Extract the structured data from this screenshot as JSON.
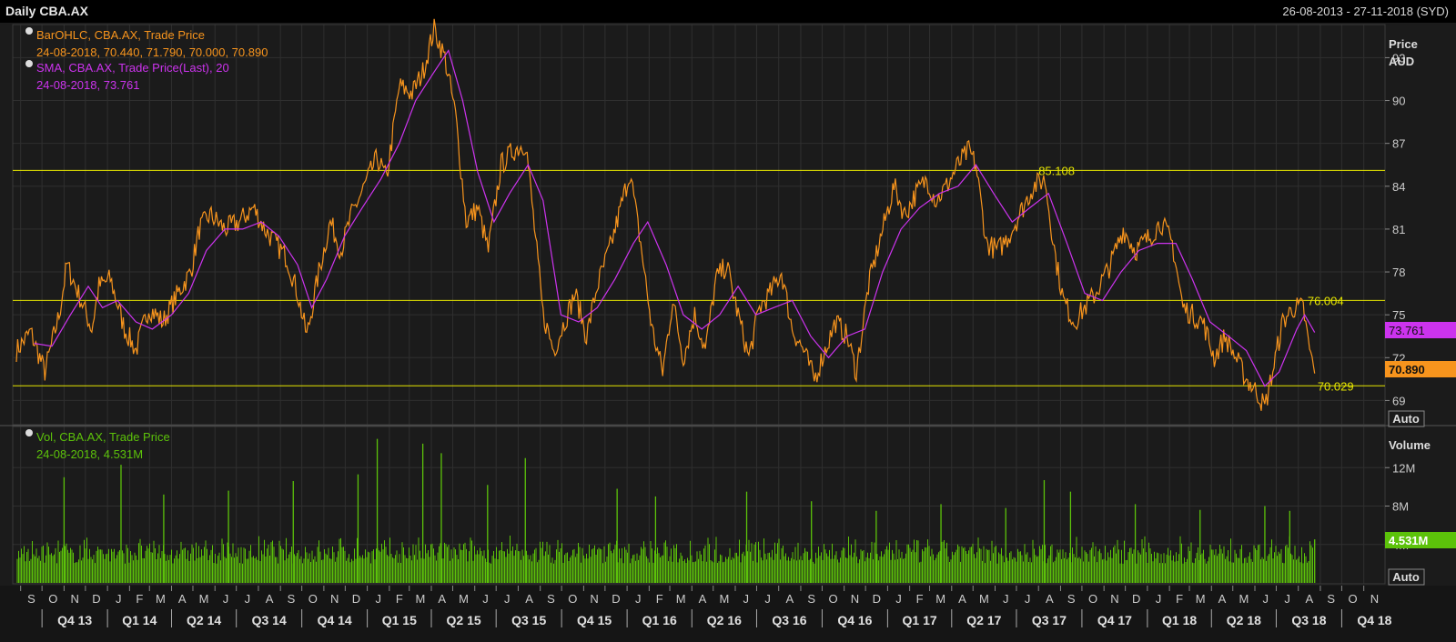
{
  "window": {
    "title": "Daily CBA.AX",
    "date_range": "26-08-2013 - 27-11-2018 (SYD)"
  },
  "legend": {
    "ohlc_title": "BarOHLC, CBA.AX, Trade Price",
    "ohlc_values": "24-08-2018, 70.440, 71.790, 70.000, 70.890",
    "sma_title": "SMA, CBA.AX, Trade Price(Last),  20",
    "sma_values": "24-08-2018, 73.761",
    "vol_title": "Vol, CBA.AX, Trade Price",
    "vol_values": "24-08-2018, 4.531M"
  },
  "price_axis": {
    "title": "Price",
    "unit": "AUD",
    "auto_label": "Auto"
  },
  "volume_axis": {
    "title": "Volume",
    "auto_label": "Auto"
  },
  "tags": {
    "sma_last": "73.761",
    "price_last": "70.890",
    "vol_last": "4.531M"
  },
  "colors": {
    "price": "#f7941d",
    "sma": "#cc33ee",
    "volume": "#5cc20a",
    "level": "#e6e600",
    "grid": "#2f2f2f",
    "text": "#cccccc"
  },
  "chart_data": [
    {
      "type": "line",
      "title": "",
      "ylabel": "Price AUD",
      "ylim": [
        67.5,
        95
      ],
      "y_ticks": [
        69,
        72,
        75,
        78,
        81,
        84,
        87,
        90,
        93
      ],
      "x_range": [
        "2013-08-26",
        "2018-11-27"
      ],
      "month_labels": [
        "S",
        "O",
        "N",
        "D",
        "J",
        "F",
        "M",
        "A",
        "M",
        "J",
        "J",
        "A",
        "S",
        "O",
        "N",
        "D",
        "J",
        "F",
        "M",
        "A",
        "M",
        "J",
        "J",
        "A",
        "S",
        "O",
        "N",
        "D",
        "J",
        "F",
        "M",
        "A",
        "M",
        "J",
        "J",
        "A",
        "S",
        "O",
        "N",
        "D",
        "J",
        "F",
        "M",
        "A",
        "M",
        "J",
        "J",
        "A",
        "S",
        "O",
        "N",
        "D",
        "J",
        "F",
        "M",
        "A",
        "M",
        "J",
        "J",
        "A",
        "S",
        "O",
        "N"
      ],
      "quarter_labels": [
        "Q4 13",
        "Q1 14",
        "Q2 14",
        "Q3 14",
        "Q4 14",
        "Q1 15",
        "Q2 15",
        "Q3 15",
        "Q4 15",
        "Q1 16",
        "Q2 16",
        "Q3 16",
        "Q4 16",
        "Q1 17",
        "Q2 17",
        "Q3 17",
        "Q4 17",
        "Q1 18",
        "Q2 18",
        "Q3 18",
        "Q4 18"
      ],
      "horizontal_levels": [
        {
          "value": 85.108,
          "label": "85.108",
          "label_date": "2017-08-01"
        },
        {
          "value": 76.004,
          "label": "76.004",
          "label_date": "2018-08-14"
        },
        {
          "value": 70.029,
          "label": "70.029",
          "label_date": "2018-08-28"
        }
      ],
      "series": [
        {
          "name": "BarOHLC, CBA.AX, Trade Price",
          "points": [
            [
              "2013-08-26",
              72.5
            ],
            [
              "2013-09-15",
              73.8
            ],
            [
              "2013-10-05",
              71.0
            ],
            [
              "2013-10-25",
              75.0
            ],
            [
              "2013-11-05",
              78.5
            ],
            [
              "2013-11-25",
              76.0
            ],
            [
              "2013-12-10",
              74.0
            ],
            [
              "2013-12-20",
              77.0
            ],
            [
              "2014-01-05",
              77.5
            ],
            [
              "2014-01-25",
              74.0
            ],
            [
              "2014-02-10",
              72.5
            ],
            [
              "2014-02-28",
              75.5
            ],
            [
              "2014-03-20",
              74.5
            ],
            [
              "2014-04-10",
              76.5
            ],
            [
              "2014-04-28",
              78.0
            ],
            [
              "2014-05-10",
              81.0
            ],
            [
              "2014-05-25",
              82.0
            ],
            [
              "2014-06-15",
              81.0
            ],
            [
              "2014-07-05",
              81.5
            ],
            [
              "2014-07-25",
              82.5
            ],
            [
              "2014-08-10",
              81.0
            ],
            [
              "2014-08-25",
              80.0
            ],
            [
              "2014-09-10",
              79.0
            ],
            [
              "2014-09-25",
              76.5
            ],
            [
              "2014-10-08",
              73.5
            ],
            [
              "2014-10-25",
              78.0
            ],
            [
              "2014-11-10",
              81.5
            ],
            [
              "2014-11-25",
              79.5
            ],
            [
              "2014-12-10",
              82.0
            ],
            [
              "2014-12-28",
              84.0
            ],
            [
              "2015-01-15",
              86.0
            ],
            [
              "2015-01-28",
              84.5
            ],
            [
              "2015-02-15",
              91.0
            ],
            [
              "2015-03-05",
              90.5
            ],
            [
              "2015-03-20",
              92.0
            ],
            [
              "2015-04-05",
              95.0
            ],
            [
              "2015-04-20",
              93.0
            ],
            [
              "2015-05-05",
              89.0
            ],
            [
              "2015-05-20",
              81.5
            ],
            [
              "2015-06-05",
              82.5
            ],
            [
              "2015-06-20",
              79.5
            ],
            [
              "2015-07-08",
              85.5
            ],
            [
              "2015-07-25",
              86.5
            ],
            [
              "2015-08-12",
              87.0
            ],
            [
              "2015-08-22",
              82.0
            ],
            [
              "2015-09-05",
              75.0
            ],
            [
              "2015-09-20",
              72.5
            ],
            [
              "2015-10-05",
              74.5
            ],
            [
              "2015-10-20",
              76.5
            ],
            [
              "2015-11-05",
              73.5
            ],
            [
              "2015-11-20",
              77.0
            ],
            [
              "2015-12-10",
              80.0
            ],
            [
              "2016-01-05",
              85.0
            ],
            [
              "2016-01-20",
              80.0
            ],
            [
              "2016-02-05",
              74.0
            ],
            [
              "2016-02-20",
              71.0
            ],
            [
              "2016-03-05",
              76.0
            ],
            [
              "2016-03-20",
              72.0
            ],
            [
              "2016-04-05",
              75.0
            ],
            [
              "2016-04-20",
              72.5
            ],
            [
              "2016-05-05",
              77.5
            ],
            [
              "2016-05-20",
              78.5
            ],
            [
              "2016-06-05",
              75.0
            ],
            [
              "2016-06-20",
              72.0
            ],
            [
              "2016-07-05",
              75.5
            ],
            [
              "2016-07-20",
              76.5
            ],
            [
              "2016-08-05",
              78.0
            ],
            [
              "2016-08-20",
              74.0
            ],
            [
              "2016-09-05",
              72.5
            ],
            [
              "2016-09-20",
              70.5
            ],
            [
              "2016-10-05",
              72.5
            ],
            [
              "2016-10-20",
              74.5
            ],
            [
              "2016-11-05",
              73.5
            ],
            [
              "2016-11-18",
              71.0
            ],
            [
              "2016-12-05",
              77.0
            ],
            [
              "2016-12-20",
              80.0
            ],
            [
              "2017-01-10",
              84.0
            ],
            [
              "2017-01-25",
              82.0
            ],
            [
              "2017-02-10",
              83.5
            ],
            [
              "2017-02-25",
              84.5
            ],
            [
              "2017-03-10",
              83.0
            ],
            [
              "2017-03-25",
              84.0
            ],
            [
              "2017-04-10",
              85.5
            ],
            [
              "2017-04-25",
              86.5
            ],
            [
              "2017-05-05",
              85.5
            ],
            [
              "2017-05-20",
              80.0
            ],
            [
              "2017-06-05",
              79.5
            ],
            [
              "2017-06-20",
              80.5
            ],
            [
              "2017-07-05",
              82.0
            ],
            [
              "2017-07-25",
              84.0
            ],
            [
              "2017-08-10",
              84.5
            ],
            [
              "2017-08-25",
              79.0
            ],
            [
              "2017-09-05",
              76.0
            ],
            [
              "2017-09-20",
              74.5
            ],
            [
              "2017-10-05",
              75.5
            ],
            [
              "2017-10-20",
              76.5
            ],
            [
              "2017-11-10",
              78.5
            ],
            [
              "2017-11-28",
              81.0
            ],
            [
              "2017-12-15",
              79.5
            ],
            [
              "2018-01-05",
              80.5
            ],
            [
              "2018-01-20",
              81.5
            ],
            [
              "2018-02-05",
              80.0
            ],
            [
              "2018-02-20",
              75.5
            ],
            [
              "2018-03-05",
              75.0
            ],
            [
              "2018-03-20",
              74.5
            ],
            [
              "2018-04-05",
              72.0
            ],
            [
              "2018-04-20",
              73.5
            ],
            [
              "2018-05-05",
              72.0
            ],
            [
              "2018-05-20",
              70.5
            ],
            [
              "2018-06-05",
              69.5
            ],
            [
              "2018-06-15",
              68.5
            ],
            [
              "2018-06-28",
              71.5
            ],
            [
              "2018-07-10",
              74.5
            ],
            [
              "2018-07-25",
              75.5
            ],
            [
              "2018-08-08",
              75.5
            ],
            [
              "2018-08-15",
              73.0
            ],
            [
              "2018-08-24",
              70.89
            ]
          ]
        },
        {
          "name": "SMA, CBA.AX, Trade Price(Last),  20",
          "points": [
            [
              "2013-09-20",
              73.0
            ],
            [
              "2013-10-15",
              72.8
            ],
            [
              "2013-11-10",
              75.0
            ],
            [
              "2013-12-05",
              77.0
            ],
            [
              "2013-12-25",
              75.5
            ],
            [
              "2014-01-15",
              76.0
            ],
            [
              "2014-02-10",
              74.5
            ],
            [
              "2014-03-05",
              74.0
            ],
            [
              "2014-04-01",
              75.0
            ],
            [
              "2014-04-25",
              76.5
            ],
            [
              "2014-05-20",
              79.5
            ],
            [
              "2014-06-15",
              81.0
            ],
            [
              "2014-07-10",
              81.0
            ],
            [
              "2014-08-05",
              81.5
            ],
            [
              "2014-08-30",
              80.5
            ],
            [
              "2014-09-25",
              78.5
            ],
            [
              "2014-10-15",
              75.5
            ],
            [
              "2014-11-05",
              77.5
            ],
            [
              "2014-11-30",
              80.5
            ],
            [
              "2014-12-25",
              82.5
            ],
            [
              "2015-01-20",
              84.5
            ],
            [
              "2015-02-15",
              87.0
            ],
            [
              "2015-03-10",
              90.0
            ],
            [
              "2015-04-05",
              92.0
            ],
            [
              "2015-04-25",
              93.5
            ],
            [
              "2015-05-15",
              90.0
            ],
            [
              "2015-06-05",
              85.0
            ],
            [
              "2015-06-28",
              81.5
            ],
            [
              "2015-07-20",
              83.5
            ],
            [
              "2015-08-15",
              85.5
            ],
            [
              "2015-09-05",
              83.0
            ],
            [
              "2015-09-30",
              75.0
            ],
            [
              "2015-10-25",
              74.5
            ],
            [
              "2015-11-20",
              75.5
            ],
            [
              "2015-12-15",
              77.5
            ],
            [
              "2016-01-10",
              80.0
            ],
            [
              "2016-01-30",
              81.5
            ],
            [
              "2016-02-25",
              78.5
            ],
            [
              "2016-03-20",
              75.0
            ],
            [
              "2016-04-15",
              74.0
            ],
            [
              "2016-05-10",
              75.0
            ],
            [
              "2016-06-05",
              77.0
            ],
            [
              "2016-06-30",
              75.0
            ],
            [
              "2016-07-25",
              75.5
            ],
            [
              "2016-08-20",
              76.0
            ],
            [
              "2016-09-15",
              73.5
            ],
            [
              "2016-10-10",
              72.0
            ],
            [
              "2016-11-05",
              73.5
            ],
            [
              "2016-11-30",
              74.0
            ],
            [
              "2016-12-25",
              78.0
            ],
            [
              "2017-01-20",
              81.0
            ],
            [
              "2017-02-15",
              82.5
            ],
            [
              "2017-03-15",
              83.5
            ],
            [
              "2017-04-10",
              84.0
            ],
            [
              "2017-05-05",
              85.5
            ],
            [
              "2017-05-30",
              83.5
            ],
            [
              "2017-06-25",
              81.5
            ],
            [
              "2017-07-20",
              82.5
            ],
            [
              "2017-08-15",
              83.5
            ],
            [
              "2017-09-10",
              80.0
            ],
            [
              "2017-10-05",
              76.5
            ],
            [
              "2017-10-30",
              76.0
            ],
            [
              "2017-11-25",
              78.0
            ],
            [
              "2017-12-20",
              79.5
            ],
            [
              "2018-01-15",
              80.0
            ],
            [
              "2018-02-10",
              80.0
            ],
            [
              "2018-03-05",
              77.5
            ],
            [
              "2018-03-30",
              74.5
            ],
            [
              "2018-04-25",
              73.5
            ],
            [
              "2018-05-20",
              72.5
            ],
            [
              "2018-06-15",
              70.0
            ],
            [
              "2018-07-05",
              71.0
            ],
            [
              "2018-07-30",
              74.0
            ],
            [
              "2018-08-10",
              75.0
            ],
            [
              "2018-08-24",
              73.761
            ]
          ]
        }
      ]
    },
    {
      "type": "bar",
      "title": "",
      "ylabel": "Volume",
      "ylim": [
        0,
        16
      ],
      "y_unit": "M",
      "y_ticks": [
        4,
        8,
        12
      ],
      "series": [
        {
          "name": "Vol, CBA.AX, Trade Price",
          "typical_range": [
            2.0,
            4.5
          ],
          "spikes": [
            [
              "2013-11-01",
              11.0
            ],
            [
              "2014-01-20",
              12.3
            ],
            [
              "2014-03-21",
              9.2
            ],
            [
              "2014-06-20",
              9.6
            ],
            [
              "2014-09-19",
              10.6
            ],
            [
              "2014-12-19",
              11.3
            ],
            [
              "2015-01-15",
              15.0
            ],
            [
              "2015-03-20",
              14.5
            ],
            [
              "2015-04-15",
              13.5
            ],
            [
              "2015-06-19",
              10.2
            ],
            [
              "2015-08-11",
              13.0
            ],
            [
              "2015-12-18",
              9.8
            ],
            [
              "2016-02-10",
              9.0
            ],
            [
              "2016-06-17",
              9.5
            ],
            [
              "2016-09-16",
              8.5
            ],
            [
              "2016-12-16",
              7.5
            ],
            [
              "2017-03-17",
              8.2
            ],
            [
              "2017-06-16",
              7.8
            ],
            [
              "2017-08-09",
              10.7
            ],
            [
              "2017-09-15",
              9.5
            ],
            [
              "2017-12-15",
              8.2
            ],
            [
              "2018-03-16",
              7.6
            ],
            [
              "2018-06-15",
              8.0
            ],
            [
              "2018-07-20",
              7.5
            ],
            [
              "2018-08-24",
              4.531
            ]
          ]
        }
      ]
    }
  ]
}
